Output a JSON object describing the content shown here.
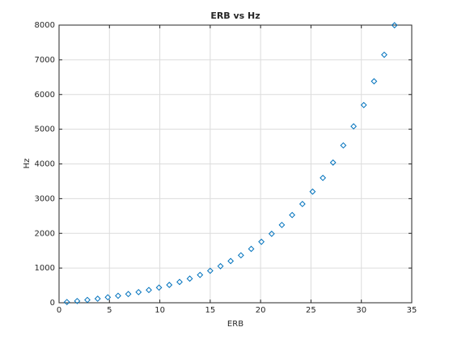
{
  "chart_data": {
    "type": "scatter",
    "title": "ERB vs Hz",
    "x_label": "ERB",
    "y_label": "Hz",
    "x": [
      0.78,
      1.8,
      2.81,
      3.83,
      4.84,
      5.86,
      6.87,
      7.89,
      8.91,
      9.92,
      10.94,
      11.96,
      12.97,
      13.99,
      15.0,
      16.02,
      17.03,
      18.05,
      19.07,
      20.08,
      21.1,
      22.11,
      23.13,
      24.15,
      25.16,
      26.18,
      27.19,
      28.21,
      29.23,
      30.24,
      31.26,
      32.27,
      33.29
    ],
    "values": [
      20,
      49,
      81,
      117,
      157,
      201,
      251,
      306,
      368,
      437,
      514,
      599,
      695,
      802,
      921,
      1054,
      1202,
      1367,
      1552,
      1757,
      1987,
      2242,
      2528,
      2846,
      3202,
      3598,
      4040,
      4533,
      5083,
      5697,
      6381,
      7145,
      7996
    ],
    "color": "#0072bd",
    "marker": "diamond",
    "xlim": [
      0,
      35
    ],
    "xticks": [
      0,
      5,
      10,
      15,
      20,
      25,
      30,
      35
    ],
    "ylim": [
      0,
      8000
    ],
    "yticks": [
      0,
      1000,
      2000,
      3000,
      4000,
      5000,
      6000,
      7000,
      8000
    ],
    "grid": true
  }
}
